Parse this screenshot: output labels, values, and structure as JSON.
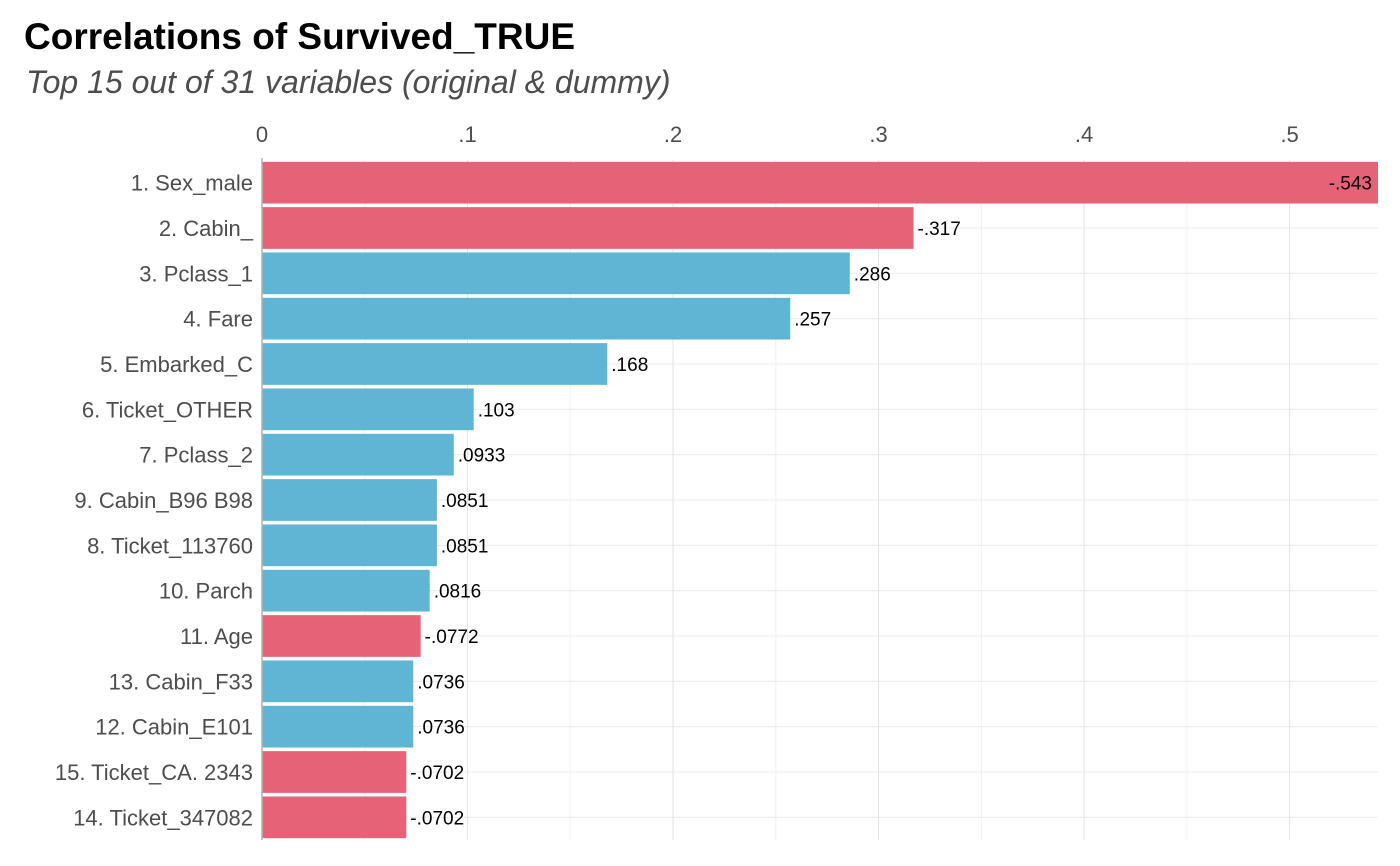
{
  "chart_data": {
    "type": "bar",
    "orientation": "horizontal",
    "title": "Correlations of Survived_TRUE",
    "subtitle": "Top 15 out of 31 variables (original & dummy)",
    "xlabel": "",
    "ylabel": "",
    "xlim": [
      0,
      0.543
    ],
    "x_ticks": [
      0,
      0.1,
      0.2,
      0.3,
      0.4,
      0.5
    ],
    "x_tick_labels": [
      "0",
      ".1",
      ".2",
      ".3",
      ".4",
      ".5"
    ],
    "x_axis_position": "top",
    "grid": true,
    "legend": "none",
    "colors": {
      "positive": "#61B5D4",
      "negative": "#E66277"
    },
    "categories": [
      "1. Sex_male",
      "2. Cabin_",
      "3. Pclass_1",
      "4. Fare",
      "5. Embarked_C",
      "6. Ticket_OTHER",
      "7. Pclass_2",
      "9. Cabin_B96 B98",
      "8. Ticket_113760",
      "10. Parch",
      "11. Age",
      "13. Cabin_F33",
      "12. Cabin_E101",
      "15. Ticket_CA. 2343",
      "14. Ticket_347082"
    ],
    "values": [
      -0.543,
      -0.317,
      0.286,
      0.257,
      0.168,
      0.103,
      0.0933,
      0.0851,
      0.0851,
      0.0816,
      -0.0772,
      0.0736,
      0.0736,
      -0.0702,
      -0.0702
    ],
    "value_labels": [
      "-.543",
      "-.317",
      ".286",
      ".257",
      ".168",
      ".103",
      ".0933",
      ".0851",
      ".0851",
      ".0816",
      "-.0772",
      ".0736",
      ".0736",
      "-.0702",
      "-.0702"
    ]
  }
}
